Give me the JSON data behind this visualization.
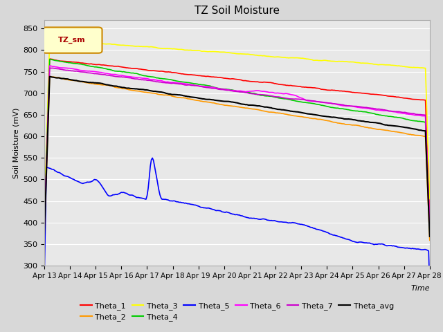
{
  "title": "TZ Soil Moisture",
  "ylabel": "Soil Moisture (mV)",
  "xlabel": "Time",
  "ylim": [
    300,
    870
  ],
  "yticks": [
    300,
    350,
    400,
    450,
    500,
    550,
    600,
    650,
    700,
    750,
    800,
    850
  ],
  "date_labels": [
    "Apr 13",
    "Apr 14",
    "Apr 15",
    "Apr 16",
    "Apr 17",
    "Apr 18",
    "Apr 19",
    "Apr 20",
    "Apr 21",
    "Apr 22",
    "Apr 23",
    "Apr 24",
    "Apr 25",
    "Apr 26",
    "Apr 27",
    "Apr 28"
  ],
  "series_colors": {
    "Theta_1": "#ff0000",
    "Theta_2": "#ff9900",
    "Theta_3": "#ffff00",
    "Theta_4": "#00cc00",
    "Theta_5": "#0000ff",
    "Theta_6": "#ff00ff",
    "Theta_7": "#cc00cc",
    "Theta_avg": "#000000"
  },
  "legend_label": "TZ_sm",
  "fig_bg_color": "#d8d8d8",
  "plot_bg_color": "#e8e8e8"
}
